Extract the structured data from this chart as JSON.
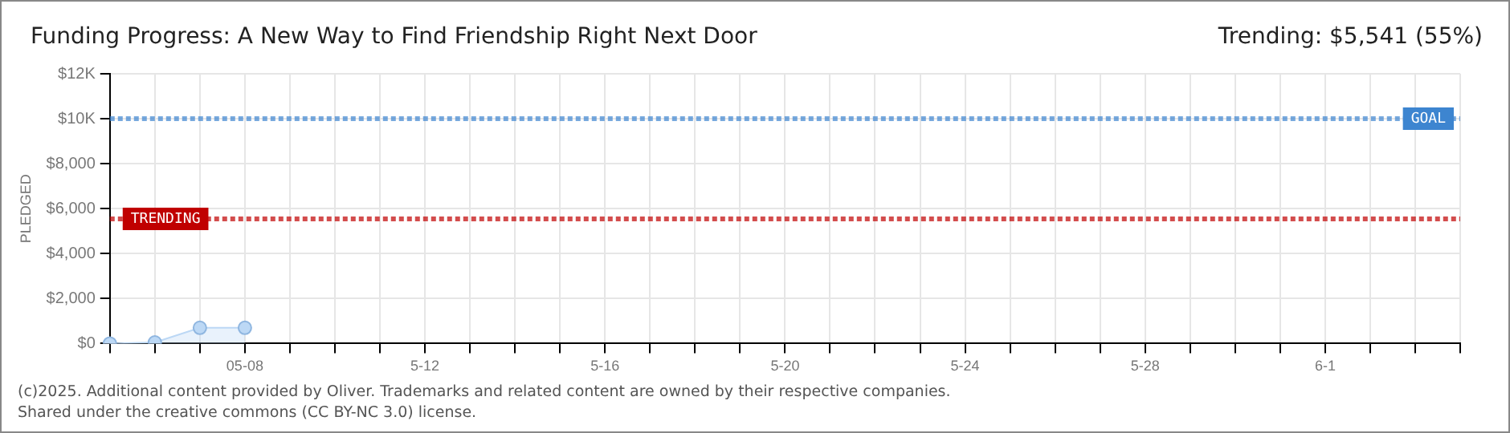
{
  "chart_data": {
    "type": "area",
    "title": "Funding Progress: A New Way to Find Friendship Right Next Door",
    "ylabel": "PLEDGED",
    "annotations": [
      "Trending: $5,541 (55%)",
      "(c)2025. Additional content provided by Oliver. Trademarks and related content are owned by their respective companies.",
      "Shared under the creative commons (CC BY-NC 3.0) license."
    ],
    "categories": [
      null,
      null,
      null,
      "05-08",
      null,
      null,
      null,
      "5-12",
      null,
      null,
      null,
      "5-16",
      null,
      null,
      null,
      "5-20",
      null,
      null,
      null,
      "5-24",
      null,
      null,
      null,
      "5-28",
      null,
      null,
      null,
      "6-1",
      null,
      null,
      null
    ],
    "series": [
      {
        "color": "#bcd8f5",
        "values": [
          0,
          50,
          700,
          700,
          null,
          null,
          null,
          null,
          null,
          null,
          null,
          null,
          null,
          null,
          null,
          null,
          null,
          null,
          null,
          null,
          null,
          null,
          null,
          null,
          null,
          null,
          null,
          null,
          null,
          null,
          null
        ]
      }
    ],
    "ylim": [
      0,
      12000
    ],
    "yticks": [
      {
        "value": 0,
        "label": "$0"
      },
      {
        "value": 2000,
        "label": "$2,000"
      },
      {
        "value": 4000,
        "label": "$4,000"
      },
      {
        "value": 6000,
        "label": "$6,000"
      },
      {
        "value": 8000,
        "label": "$8,000"
      },
      {
        "value": 10000,
        "label": "$10K"
      },
      {
        "value": 12000,
        "label": "$12K"
      }
    ],
    "ref_lines": [
      {
        "axis": "y",
        "value": 10000,
        "label": "GOAL",
        "color": "#3d85d0",
        "line_style": "dotted"
      },
      {
        "axis": "y",
        "value": 5541,
        "label": "TRENDING",
        "color": "#c00000",
        "line_style": "dotted"
      }
    ],
    "grid": true,
    "marker": "circle",
    "line_style": "solid",
    "legend": false
  }
}
